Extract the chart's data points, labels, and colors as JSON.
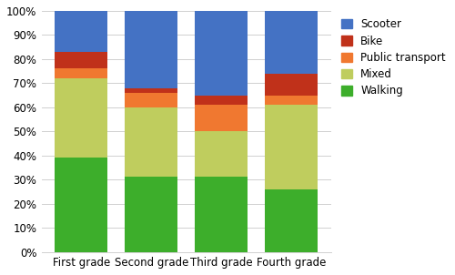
{
  "categories": [
    "First grade",
    "Second grade",
    "Third grade",
    "Fourth grade"
  ],
  "series": {
    "Walking": [
      39,
      31,
      31,
      26
    ],
    "Mixed": [
      33,
      29,
      19,
      35
    ],
    "Public transport": [
      4,
      6,
      11,
      4
    ],
    "Bike": [
      7,
      2,
      4,
      9
    ],
    "Scooter": [
      17,
      32,
      35,
      26
    ]
  },
  "colors": {
    "Walking": "#3dae2b",
    "Mixed": "#bfcd5e",
    "Public transport": "#f07830",
    "Bike": "#c0311a",
    "Scooter": "#4472c4"
  },
  "legend_order": [
    "Scooter",
    "Bike",
    "Public transport",
    "Mixed",
    "Walking"
  ],
  "layer_order": [
    "Walking",
    "Mixed",
    "Public transport",
    "Bike",
    "Scooter"
  ],
  "ylim": [
    0,
    100
  ],
  "yticks": [
    0,
    10,
    20,
    30,
    40,
    50,
    60,
    70,
    80,
    90,
    100
  ],
  "ytick_labels": [
    "0%",
    "10%",
    "20%",
    "30%",
    "40%",
    "50%",
    "60%",
    "70%",
    "80%",
    "90%",
    "100%"
  ],
  "bar_width": 0.75,
  "figsize": [
    5.0,
    3.02
  ],
  "dpi": 100
}
